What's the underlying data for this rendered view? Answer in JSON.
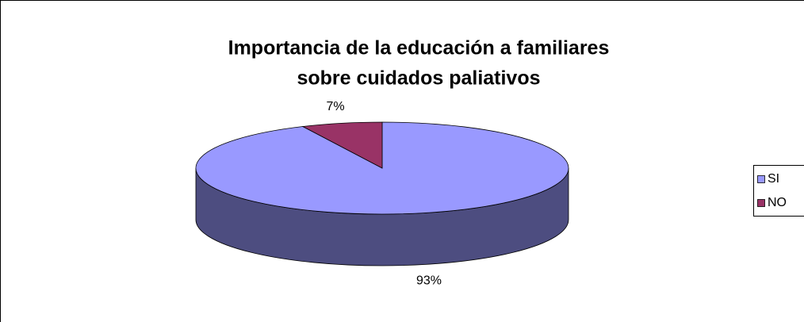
{
  "chart_data": {
    "type": "pie3d",
    "title": [
      "Importancia de la educación a familiares",
      "sobre cuidados paliativos"
    ],
    "categories": [
      "SI",
      "NO"
    ],
    "values": [
      93,
      7
    ],
    "value_labels": [
      "93%",
      "7%"
    ],
    "colors": [
      "#9999ff",
      "#993366"
    ],
    "legend": "right"
  }
}
